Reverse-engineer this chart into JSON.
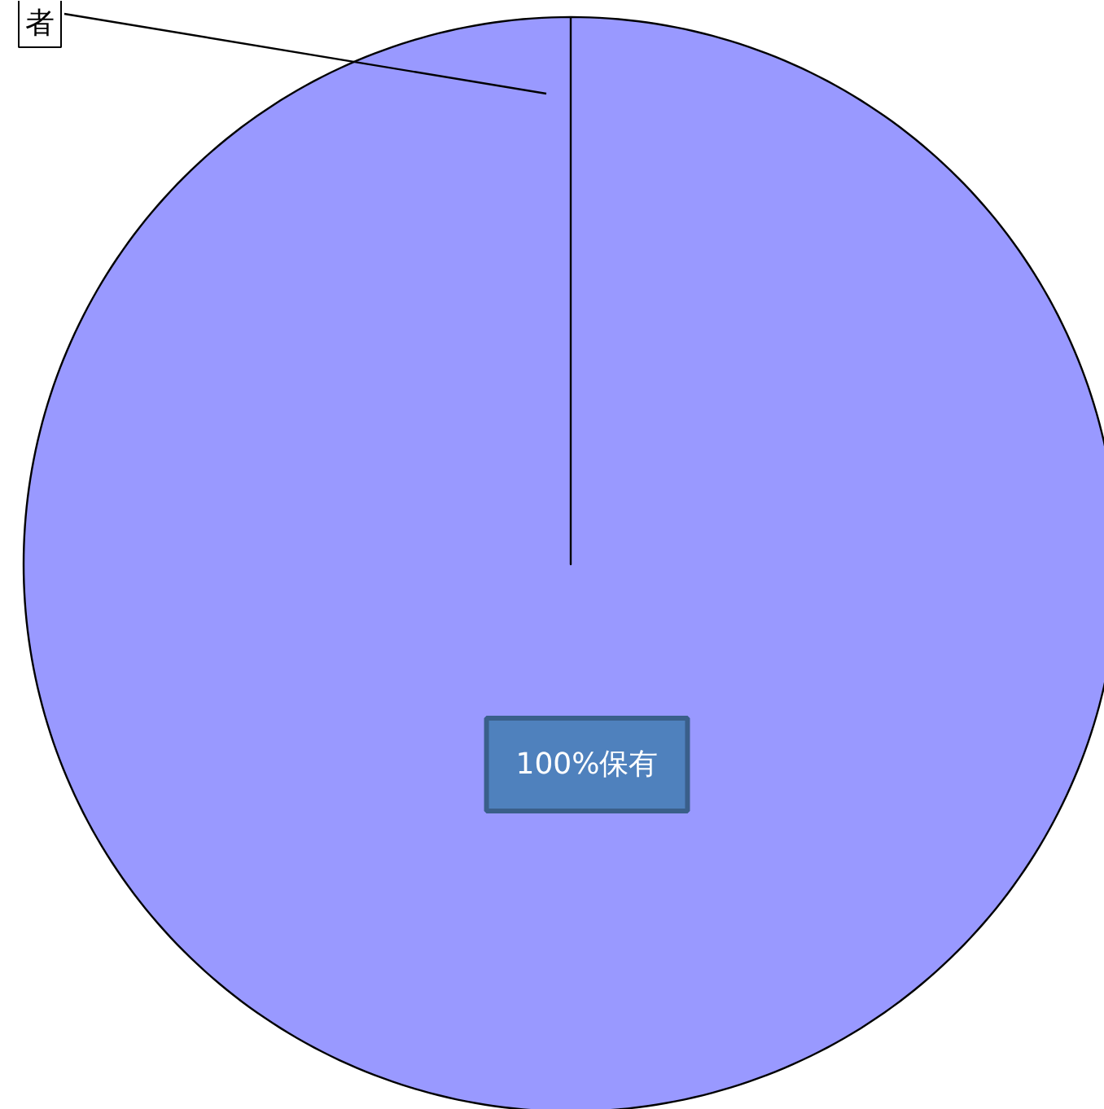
{
  "chart_data": {
    "type": "pie",
    "categories": [
      "者"
    ],
    "values": [
      100
    ],
    "colors": [
      "#9999ff"
    ],
    "annotations": [
      "100%保有"
    ]
  }
}
